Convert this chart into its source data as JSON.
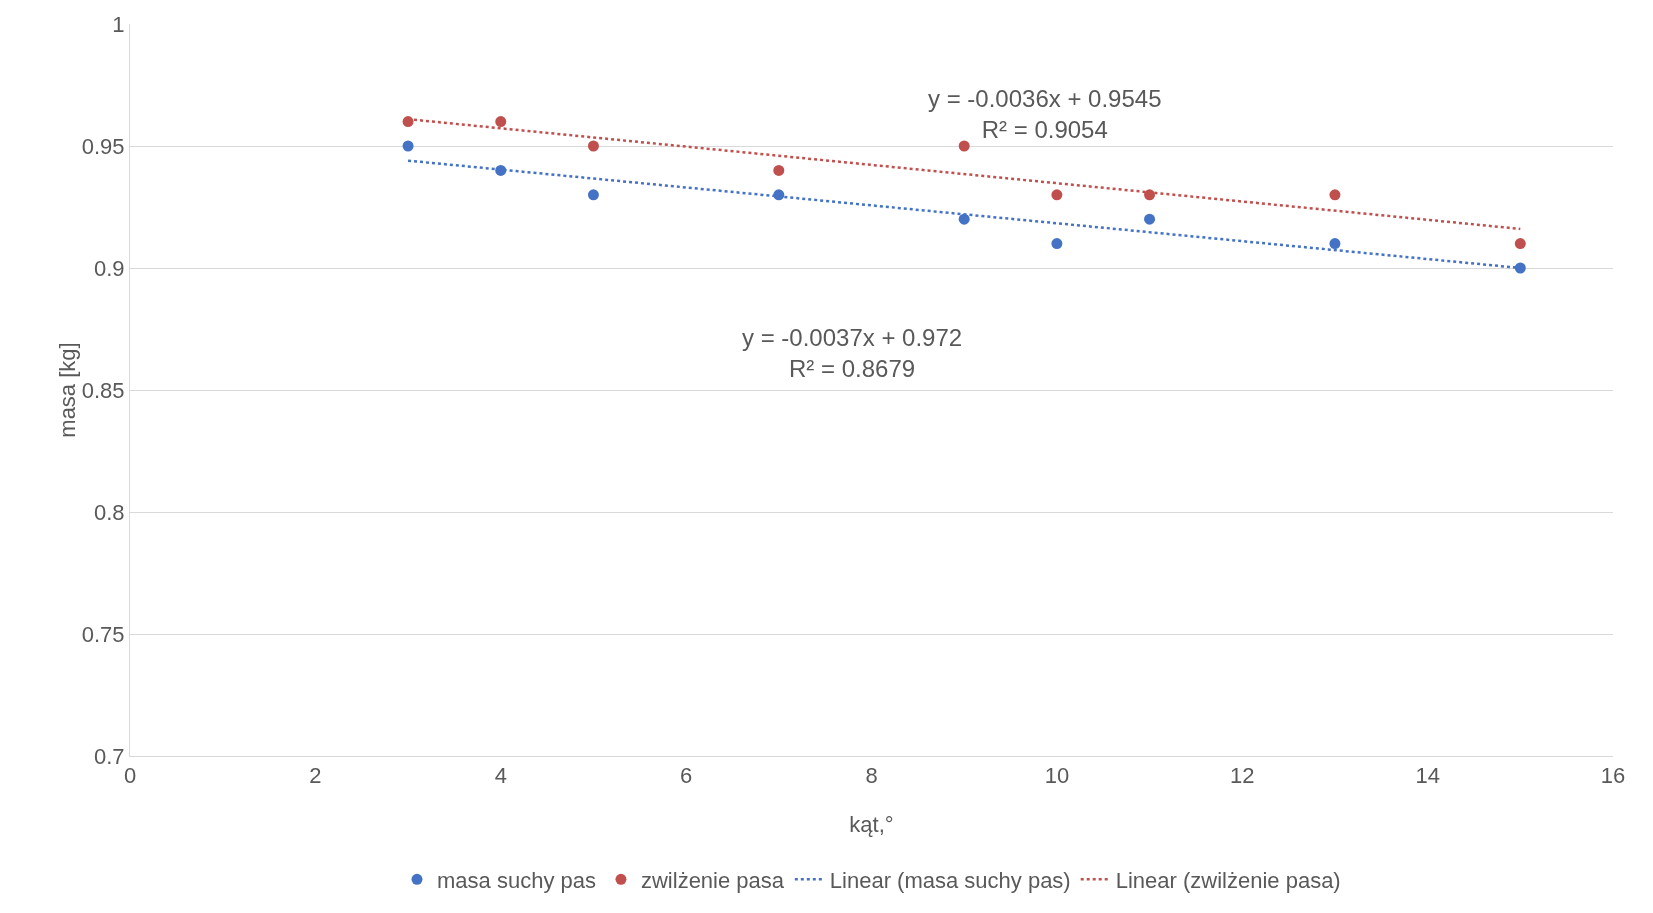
{
  "chart_data": {
    "type": "scatter",
    "xlabel": "kąt,°",
    "ylabel": "masa [kg]",
    "xlim": [
      0,
      16
    ],
    "xticks": [
      0,
      2,
      4,
      6,
      8,
      10,
      12,
      14,
      16
    ],
    "ylim": [
      0.7,
      1
    ],
    "yticks": [
      0.7,
      0.75,
      0.8,
      0.85,
      0.9,
      0.95,
      1
    ],
    "grid": "y",
    "legend": "bottom",
    "marker": "circle",
    "series": [
      {
        "name": "masa suchy pas",
        "color": "#4472c4",
        "x": [
          3,
          4,
          5,
          7,
          9,
          10,
          11,
          13,
          15
        ],
        "values": [
          0.95,
          0.94,
          0.93,
          0.93,
          0.92,
          0.91,
          0.92,
          0.91,
          0.9
        ]
      },
      {
        "name": "zwilżenie pasa",
        "color": "#c0504d",
        "x": [
          3,
          4,
          5,
          7,
          9,
          10,
          11,
          13,
          15
        ],
        "values": [
          0.96,
          0.96,
          0.95,
          0.94,
          0.95,
          0.93,
          0.93,
          0.93,
          0.91
        ]
      },
      {
        "name": "Linear (masa suchy pas)",
        "type": "line",
        "line_style": "dotted",
        "marker": "none",
        "color": "#4472c4",
        "x": [
          3,
          15
        ],
        "values": [
          0.944,
          0.9
        ]
      },
      {
        "name": "Linear (zwilżenie pasa)",
        "type": "line",
        "line_style": "dotted",
        "marker": "none",
        "color": "#c0504d",
        "x": [
          3,
          15
        ],
        "values": [
          0.961,
          0.916
        ]
      }
    ],
    "annotations": [
      "y = -0.0036x + 0.9545\nR² = 0.9054",
      "y = -0.0037x + 0.972\nR² = 0.8679"
    ]
  }
}
